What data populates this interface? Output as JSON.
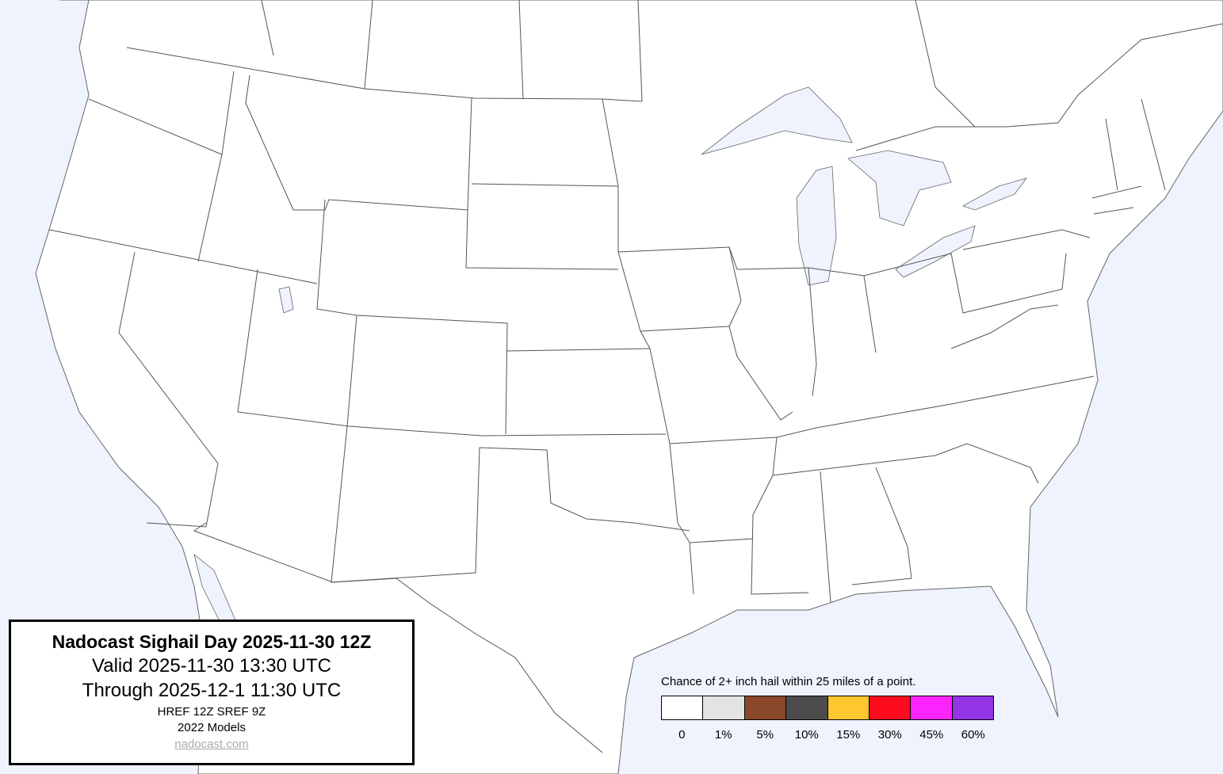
{
  "title_box": {
    "title": "Nadocast Sighail Day 2025-11-30 12Z",
    "valid": "Valid 2025-11-30 13:30 UTC",
    "through": "Through 2025-12-1 11:30 UTC",
    "models": "HREF 12Z SREF 9Z",
    "model_year": "2022 Models",
    "link": "nadocast.com"
  },
  "legend": {
    "title": "Chance of 2+ inch hail within 25 miles of a point.",
    "bins": [
      {
        "label": "0",
        "color": "#ffffff"
      },
      {
        "label": "1%",
        "color": "#e3e3e3"
      },
      {
        "label": "5%",
        "color": "#8b472a"
      },
      {
        "label": "10%",
        "color": "#4b4c4b"
      },
      {
        "label": "15%",
        "color": "#fec62f"
      },
      {
        "label": "30%",
        "color": "#fd0c1d"
      },
      {
        "label": "45%",
        "color": "#fc24fc"
      },
      {
        "label": "60%",
        "color": "#9334e6"
      }
    ]
  },
  "colors": {
    "water": "#eef3fd",
    "land": "#ffffff",
    "boundary": "#555555"
  }
}
